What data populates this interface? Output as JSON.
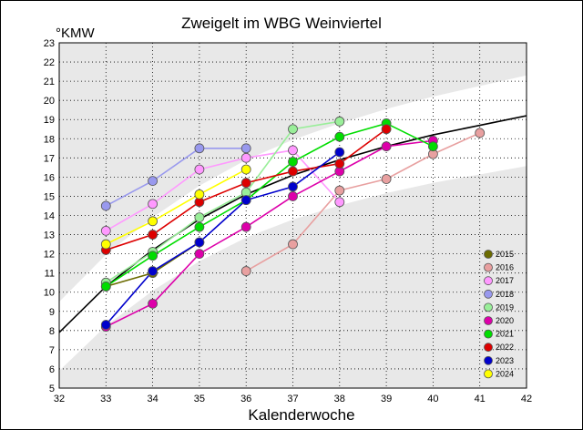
{
  "chart_data": {
    "type": "line",
    "title": "Zweigelt im WBG Weinviertel",
    "ylabel": "°KMW",
    "xlabel": "Kalenderwoche",
    "xlim": [
      32,
      42
    ],
    "ylim": [
      5,
      23
    ],
    "x_ticks": [
      "32",
      "33",
      "34",
      "35",
      "36",
      "37",
      "38",
      "39",
      "40",
      "41",
      "42"
    ],
    "y_ticks": [
      "5",
      "6",
      "7",
      "8",
      "9",
      "10",
      "11",
      "12",
      "13",
      "14",
      "15",
      "16",
      "17",
      "18",
      "19",
      "20",
      "21",
      "22",
      "23"
    ],
    "grid": true,
    "legend_position": "bottom-right",
    "background_bands": {
      "outer_color": "#e8e8e8",
      "inner_color": "#ffffff"
    },
    "trend_line": {
      "color": "#000000",
      "x": [
        32,
        33,
        34,
        35,
        36,
        37,
        38,
        39,
        40,
        41,
        42
      ],
      "y": [
        7.9,
        10.3,
        12.2,
        13.8,
        15.1,
        16.1,
        16.9,
        17.6,
        18.2,
        18.7,
        19.2
      ]
    },
    "series": [
      {
        "name": "2015",
        "color": "#6b6b00",
        "x": [
          33,
          34,
          35
        ],
        "y": [
          10.3,
          11.0,
          12.6
        ]
      },
      {
        "name": "2016",
        "color": "#e8a0a0",
        "x": [
          36,
          37,
          38,
          39,
          40,
          41
        ],
        "y": [
          11.1,
          12.5,
          15.3,
          15.9,
          17.2,
          18.3
        ]
      },
      {
        "name": "2017",
        "color": "#ff99ff",
        "x": [
          33,
          34,
          35,
          36,
          37,
          38
        ],
        "y": [
          13.2,
          14.6,
          16.4,
          17.0,
          17.4,
          14.7
        ]
      },
      {
        "name": "2018",
        "color": "#9999ee",
        "x": [
          33,
          34,
          35,
          36
        ],
        "y": [
          14.5,
          15.8,
          17.5,
          17.5
        ]
      },
      {
        "name": "2019",
        "color": "#99ee99",
        "x": [
          33,
          34,
          35,
          36,
          37,
          38
        ],
        "y": [
          10.5,
          12.1,
          13.9,
          15.2,
          18.5,
          18.9
        ]
      },
      {
        "name": "2020",
        "color": "#dd00aa",
        "x": [
          33,
          34,
          35,
          36,
          37,
          38,
          39,
          40
        ],
        "y": [
          8.2,
          9.4,
          12.0,
          13.4,
          15.0,
          16.3,
          17.6,
          17.9
        ]
      },
      {
        "name": "2021",
        "color": "#00dd00",
        "x": [
          33,
          34,
          35,
          36,
          37,
          38,
          39,
          40
        ],
        "y": [
          10.3,
          11.9,
          13.4,
          14.8,
          16.8,
          18.1,
          18.8,
          17.6
        ]
      },
      {
        "name": "2022",
        "color": "#dd0000",
        "x": [
          33,
          34,
          35,
          36,
          37,
          38,
          39
        ],
        "y": [
          12.2,
          13.0,
          14.7,
          15.7,
          16.3,
          16.7,
          18.5
        ]
      },
      {
        "name": "2023",
        "color": "#0000cc",
        "x": [
          33,
          34,
          35,
          36,
          37,
          38
        ],
        "y": [
          8.3,
          11.1,
          12.6,
          14.8,
          15.5,
          17.3
        ]
      },
      {
        "name": "2024",
        "color": "#ffff00",
        "x": [
          33,
          34,
          35,
          36
        ],
        "y": [
          12.5,
          13.7,
          15.1,
          16.4
        ]
      }
    ]
  }
}
